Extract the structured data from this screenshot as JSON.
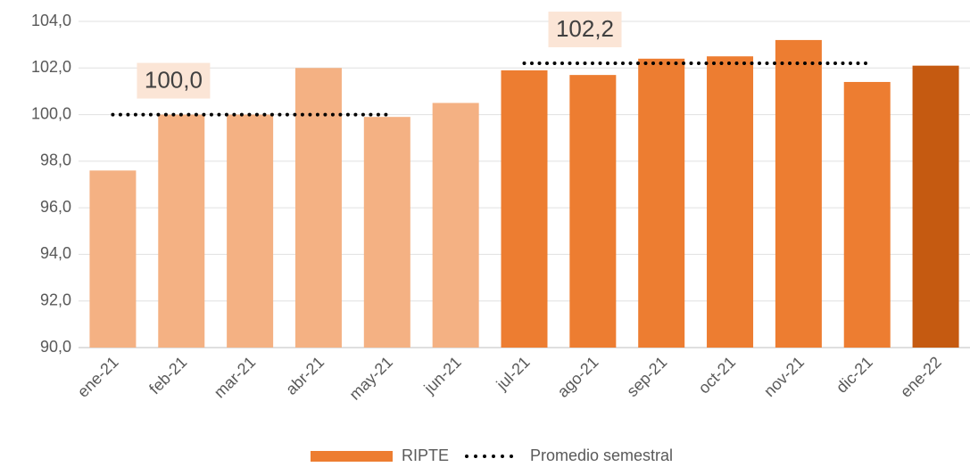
{
  "chart_data": {
    "type": "bar",
    "categories": [
      "ene-21",
      "feb-21",
      "mar-21",
      "abr-21",
      "may-21",
      "jun-21",
      "jul-21",
      "ago-21",
      "sep-21",
      "oct-21",
      "nov-21",
      "dic-21",
      "ene-22"
    ],
    "series": [
      {
        "name": "RIPTE",
        "color": "#ED7D31",
        "type": "bar",
        "colors": [
          "#F4B183",
          "#F4B183",
          "#F4B183",
          "#F4B183",
          "#F4B183",
          "#F4B183",
          "#ED7D31",
          "#ED7D31",
          "#ED7D31",
          "#ED7D31",
          "#ED7D31",
          "#ED7D31",
          "#C55A11"
        ],
        "values": [
          97.6,
          100.0,
          100.0,
          102.0,
          99.9,
          100.5,
          101.9,
          101.7,
          102.4,
          102.5,
          103.2,
          101.4,
          102.1
        ]
      },
      {
        "name": "Promedio semestral",
        "color": "#000000",
        "type": "line",
        "values": [
          100.0,
          100.0,
          100.0,
          100.0,
          100.0,
          null,
          102.2,
          102.2,
          102.2,
          102.2,
          102.2,
          102.2,
          null
        ]
      }
    ],
    "annotations": [
      "100,0",
      "102,2"
    ],
    "ylim": [
      90,
      104
    ],
    "yticks": [
      {
        "value": 90,
        "label": "90,0"
      },
      {
        "value": 92,
        "label": "92,0"
      },
      {
        "value": 94,
        "label": "94,0"
      },
      {
        "value": 96,
        "label": "96,0"
      },
      {
        "value": 98,
        "label": "98,0"
      },
      {
        "value": 100,
        "label": "100,0"
      },
      {
        "value": 102,
        "label": "102,0"
      },
      {
        "value": 104,
        "label": "104,0"
      }
    ],
    "grid": true
  }
}
